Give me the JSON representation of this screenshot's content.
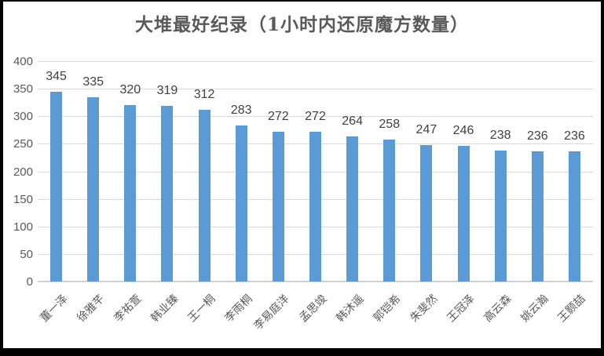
{
  "chart_data": {
    "type": "bar",
    "title": "大堆最好纪录（1小时内还原魔方数量）",
    "categories": [
      "董一泽",
      "徐雅芊",
      "李祐萱",
      "韩业臻",
      "王一桐",
      "李雨桐",
      "李易庭洋",
      "孟思竣",
      "韩沐遥",
      "郭铠希",
      "朱斐然",
      "王冠泽",
      "高云森",
      "姚云瀚",
      "王颢喆"
    ],
    "values": [
      345,
      335,
      320,
      319,
      312,
      283,
      272,
      272,
      264,
      258,
      247,
      246,
      238,
      236,
      236
    ],
    "xlabel": "",
    "ylabel": "",
    "ylim": [
      0,
      400
    ],
    "yticks": [
      "0",
      "50",
      "100",
      "150",
      "200",
      "250",
      "300",
      "350",
      "400"
    ],
    "grid": true,
    "legend": false,
    "data_labels": true,
    "colors": {
      "bar": "#5b9bd5",
      "gridline": "#d9d9d9",
      "baseline": "#cfcfcf",
      "axis_text": "#595959",
      "value_label_text": "#404040",
      "title_text": "#595959",
      "frame": "#000000",
      "background": "#ffffff"
    }
  }
}
